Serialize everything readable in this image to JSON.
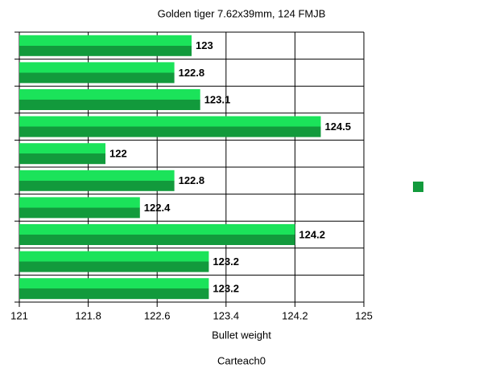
{
  "chart_data": {
    "type": "bar",
    "orientation": "horizontal",
    "title": "Golden tiger 7.62x39mm, 124 FMJB",
    "x_label": "Bullet weight",
    "caption": "Carteach0",
    "categories": [
      null,
      null,
      null,
      null,
      null,
      null,
      null,
      null,
      null,
      null
    ],
    "values": [
      123,
      122.8,
      123.1,
      124.5,
      122,
      122.8,
      122.4,
      124.2,
      123.2,
      123.2
    ],
    "color": "#129a3c",
    "xlim": [
      121,
      125
    ],
    "xticks": [
      121,
      121.8,
      122.6,
      123.4,
      124.2,
      125
    ],
    "grid": true
  }
}
